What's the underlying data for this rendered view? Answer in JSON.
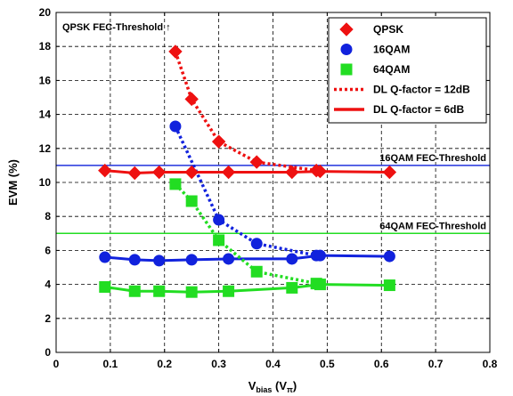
{
  "chart_data": {
    "type": "line",
    "xlabel_main": "V",
    "xlabel_sub1": "bias",
    "xlabel_mid": " (V",
    "xlabel_sub2": "π",
    "xlabel_end": ")",
    "ylabel": "EVM (%)",
    "xlim": [
      0,
      0.8
    ],
    "ylim": [
      0,
      20
    ],
    "xticks": [
      0,
      0.1,
      0.2,
      0.3,
      0.4,
      0.5,
      0.6,
      0.7,
      0.8
    ],
    "xtick_labels": [
      "0",
      "0.1",
      "0.2",
      "0.3",
      "0.4",
      "0.5",
      "0.6",
      "0.7",
      "0.8"
    ],
    "yticks": [
      0,
      2,
      4,
      6,
      8,
      10,
      12,
      14,
      16,
      18,
      20
    ],
    "ytick_labels": [
      "0",
      "2",
      "4",
      "6",
      "8",
      "10",
      "12",
      "14",
      "16",
      "18",
      "20"
    ],
    "grid": true,
    "legend_position": "top-right",
    "thresholds": [
      {
        "label": "16QAM FEC-Threshold",
        "y": 11,
        "color": "#2233dd"
      },
      {
        "label": "64QAM FEC-Threshold",
        "y": 7,
        "color": "#22dd22"
      }
    ],
    "qpsk_threshold_label": "QPSK FEC-Threshold ↑",
    "series": [
      {
        "name": "QPSK",
        "marker": "diamond",
        "color": "#ee1111",
        "curve_12dB": {
          "x": [
            0.22,
            0.25,
            0.3,
            0.37,
            0.48
          ],
          "y": [
            17.7,
            14.9,
            12.4,
            11.2,
            10.7
          ]
        },
        "curve_6dB": {
          "x": [
            0.09,
            0.145,
            0.19,
            0.25,
            0.318,
            0.435,
            0.487,
            0.615
          ],
          "y": [
            10.7,
            10.55,
            10.6,
            10.6,
            10.6,
            10.6,
            10.65,
            10.6
          ]
        }
      },
      {
        "name": "16QAM",
        "marker": "circle",
        "color": "#1122dd",
        "curve_12dB": {
          "x": [
            0.22,
            0.3,
            0.37,
            0.48
          ],
          "y": [
            13.3,
            7.8,
            6.4,
            5.7
          ]
        },
        "curve_6dB": {
          "x": [
            0.09,
            0.145,
            0.19,
            0.25,
            0.318,
            0.435,
            0.487,
            0.615
          ],
          "y": [
            5.6,
            5.45,
            5.4,
            5.45,
            5.5,
            5.5,
            5.7,
            5.65
          ]
        }
      },
      {
        "name": "64QAM",
        "marker": "square",
        "color": "#22dd22",
        "curve_12dB": {
          "x": [
            0.22,
            0.25,
            0.3,
            0.37,
            0.48
          ],
          "y": [
            9.9,
            8.9,
            6.6,
            4.75,
            4.05
          ]
        },
        "curve_6dB": {
          "x": [
            0.09,
            0.145,
            0.19,
            0.25,
            0.318,
            0.435,
            0.487,
            0.615
          ],
          "y": [
            3.85,
            3.6,
            3.6,
            3.55,
            3.6,
            3.8,
            4.0,
            3.95
          ]
        }
      }
    ],
    "legend": [
      {
        "label": "QPSK",
        "kind": "marker",
        "marker": "diamond",
        "color": "#ee1111"
      },
      {
        "label": "16QAM",
        "kind": "marker",
        "marker": "circle",
        "color": "#1122dd"
      },
      {
        "label": "64QAM",
        "kind": "marker",
        "marker": "square",
        "color": "#22dd22"
      },
      {
        "label": "DL Q-factor = 12dB",
        "kind": "line",
        "style": "dotted",
        "color": "#ee1111"
      },
      {
        "label": "DL Q-factor = 6dB",
        "kind": "line",
        "style": "solid",
        "color": "#ee1111"
      }
    ]
  }
}
